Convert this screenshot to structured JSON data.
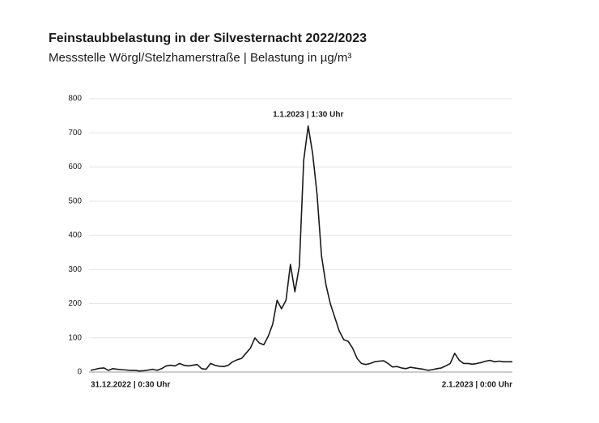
{
  "chart_data": {
    "type": "line",
    "title": "Feinstaubbelastung in der Silvesternacht 2022/2023",
    "subtitle": "Messstelle Wörgl/Stelzhamerstraße | Belastung in µg/m³",
    "annotation": "1.1.2023 | 1:30 Uhr",
    "categories": [
      "31.12.2022 | 0:30 Uhr",
      null,
      null,
      null,
      null,
      null,
      null,
      null,
      null,
      null,
      null,
      null,
      null,
      null,
      null,
      null,
      null,
      null,
      null,
      null,
      null,
      null,
      null,
      null,
      null,
      null,
      null,
      null,
      null,
      null,
      null,
      null,
      null,
      null,
      null,
      null,
      null,
      null,
      null,
      null,
      null,
      null,
      null,
      null,
      null,
      null,
      null,
      null,
      null,
      null,
      null,
      null,
      null,
      null,
      null,
      null,
      null,
      null,
      null,
      null,
      null,
      null,
      null,
      null,
      null,
      null,
      null,
      null,
      null,
      null,
      null,
      null,
      null,
      null,
      null,
      null,
      null,
      null,
      null,
      null,
      null,
      null,
      null,
      null,
      null,
      null,
      null,
      null,
      null,
      null,
      null,
      null,
      null,
      null,
      null,
      "2.1.2023 | 0:00 Uhr"
    ],
    "series": [
      {
        "name": "Feinstaub",
        "color": "#1a1a1a",
        "values": [
          5,
          8,
          11,
          12,
          5,
          10,
          8,
          7,
          6,
          5,
          5,
          3,
          4,
          6,
          8,
          5,
          10,
          18,
          20,
          18,
          25,
          20,
          18,
          20,
          22,
          10,
          8,
          25,
          20,
          17,
          16,
          20,
          30,
          36,
          40,
          55,
          70,
          100,
          85,
          80,
          105,
          140,
          210,
          185,
          210,
          315,
          235,
          310,
          620,
          720,
          640,
          520,
          340,
          255,
          200,
          160,
          120,
          95,
          90,
          70,
          40,
          25,
          22,
          25,
          30,
          32,
          33,
          25,
          15,
          16,
          12,
          10,
          14,
          12,
          10,
          8,
          5,
          7,
          10,
          12,
          18,
          25,
          55,
          35,
          25,
          25,
          23,
          25,
          28,
          32,
          34,
          30,
          32,
          30,
          30,
          30
        ]
      }
    ],
    "ylim": [
      0,
      800
    ],
    "yticks": [
      0,
      100,
      200,
      300,
      400,
      500,
      600,
      700,
      800
    ],
    "grid": true
  }
}
